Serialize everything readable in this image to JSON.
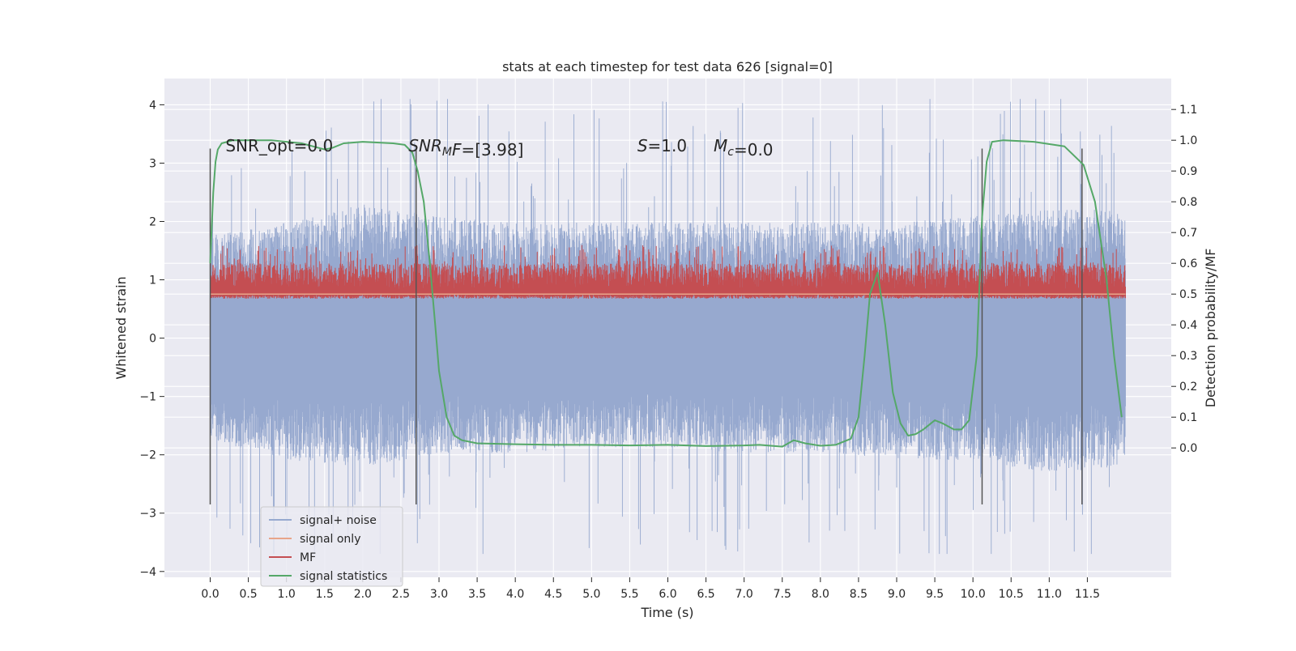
{
  "chart_data": {
    "type": "line",
    "title": "stats at each timestep for test data 626 [signal=0]",
    "xlabel": "Time (s)",
    "ylabel": "Whitened strain",
    "y2label": "Detection probability/MF",
    "xlim": [
      -0.6,
      12.6
    ],
    "ylim": [
      -4.1,
      4.45
    ],
    "y2lim": [
      -0.4205,
      1.2005
    ],
    "xticks": [
      0.0,
      0.5,
      1.0,
      1.5,
      2.0,
      2.5,
      3.0,
      3.5,
      4.0,
      4.5,
      5.0,
      5.5,
      6.0,
      6.5,
      7.0,
      7.5,
      8.0,
      8.5,
      9.0,
      9.5,
      10.0,
      10.5,
      11.0,
      11.5
    ],
    "xtick_labels": [
      "0.0",
      "0.5",
      "1.0",
      "1.5",
      "2.0",
      "2.5",
      "3.0",
      "3.5",
      "4.0",
      "4.5",
      "5.0",
      "5.5",
      "6.0",
      "6.5",
      "7.0",
      "7.5",
      "8.0",
      "8.5",
      "9.0",
      "9.5",
      "10.0",
      "10.5",
      "11.0",
      "11.5"
    ],
    "yticks": [
      -4,
      -3,
      -2,
      -1,
      0,
      1,
      2,
      3,
      4
    ],
    "ytick_labels": [
      "−4",
      "−3",
      "−2",
      "−1",
      "0",
      "1",
      "2",
      "3",
      "4"
    ],
    "y2ticks": [
      0.0,
      0.1,
      0.2,
      0.3,
      0.4,
      0.5,
      0.6,
      0.7,
      0.8,
      0.9,
      1.0,
      1.1
    ],
    "y2tick_labels": [
      "0.0",
      "0.1",
      "0.2",
      "0.3",
      "0.4",
      "0.5",
      "0.6",
      "0.7",
      "0.8",
      "0.9",
      "1.0",
      "1.1"
    ],
    "grid": true,
    "legend_position": "lower-left",
    "colors": {
      "background": "#eaeaf2",
      "grid": "#ffffff",
      "noise": "#97a9cf",
      "signal_only": "#e8a58a",
      "mf": "#c44e52",
      "stat": "#55a868",
      "vline": "#555555"
    },
    "series": [
      {
        "name": "signal+ noise",
        "color": "#97a9cf",
        "t_range": [
          0.0,
          12.0
        ],
        "envelope_upper_approx": [
          [
            0.0,
            1.6
          ],
          [
            1.0,
            1.8
          ],
          [
            2.0,
            2.1
          ],
          [
            3.0,
            1.9
          ],
          [
            4.0,
            1.8
          ],
          [
            5.0,
            1.8
          ],
          [
            6.0,
            1.8
          ],
          [
            7.0,
            1.8
          ],
          [
            8.0,
            1.8
          ],
          [
            9.0,
            1.8
          ],
          [
            10.0,
            1.9
          ],
          [
            11.0,
            2.0
          ],
          [
            12.0,
            2.0
          ]
        ],
        "envelope_lower_approx": [
          [
            0.0,
            -1.6
          ],
          [
            1.0,
            -1.9
          ],
          [
            2.0,
            -2.0
          ],
          [
            3.0,
            -1.8
          ],
          [
            4.0,
            -1.8
          ],
          [
            5.0,
            -1.7
          ],
          [
            6.0,
            -1.7
          ],
          [
            7.0,
            -1.8
          ],
          [
            8.0,
            -1.8
          ],
          [
            9.0,
            -1.9
          ],
          [
            10.0,
            -1.9
          ],
          [
            11.0,
            -2.1
          ],
          [
            12.0,
            -2.0
          ]
        ],
        "peak_max": 4.1,
        "peak_min": -3.7
      },
      {
        "name": "signal only",
        "color": "#e8a58a",
        "t_range": [
          0.0,
          12.0
        ],
        "y_right": 0.5
      },
      {
        "name": "MF",
        "color": "#c44e52",
        "t_range": [
          0.0,
          12.0
        ],
        "y_right_min": 0.5,
        "y_right_typical_max": 0.6,
        "y_right_peak_max": 0.66
      },
      {
        "name": "signal statistics",
        "color": "#55a868",
        "x": [
          0.0,
          0.04,
          0.07,
          0.1,
          0.15,
          0.3,
          0.5,
          0.8,
          1.2,
          1.35,
          1.5,
          1.6,
          1.75,
          2.0,
          2.4,
          2.55,
          2.65,
          2.72,
          2.8,
          2.88,
          2.95,
          3.0,
          3.1,
          3.2,
          3.3,
          3.5,
          4.0,
          4.5,
          5.0,
          5.5,
          6.0,
          6.5,
          7.0,
          7.2,
          7.5,
          7.65,
          7.8,
          8.0,
          8.2,
          8.4,
          8.5,
          8.58,
          8.65,
          8.75,
          8.85,
          8.95,
          9.05,
          9.15,
          9.25,
          9.35,
          9.5,
          9.6,
          9.75,
          9.85,
          9.95,
          10.05,
          10.12,
          10.18,
          10.25,
          10.4,
          10.8,
          11.2,
          11.45,
          11.6,
          11.75,
          11.85,
          11.95
        ],
        "y_right": [
          0.6,
          0.83,
          0.93,
          0.97,
          0.99,
          1.0,
          1.0,
          1.0,
          0.99,
          0.98,
          0.97,
          0.975,
          0.99,
          0.995,
          0.99,
          0.985,
          0.96,
          0.9,
          0.8,
          0.6,
          0.4,
          0.25,
          0.1,
          0.04,
          0.025,
          0.015,
          0.012,
          0.01,
          0.01,
          0.008,
          0.01,
          0.006,
          0.008,
          0.01,
          0.004,
          0.025,
          0.015,
          0.007,
          0.01,
          0.03,
          0.1,
          0.3,
          0.5,
          0.57,
          0.4,
          0.18,
          0.08,
          0.04,
          0.045,
          0.06,
          0.09,
          0.08,
          0.06,
          0.06,
          0.09,
          0.3,
          0.75,
          0.93,
          0.995,
          1.0,
          0.995,
          0.98,
          0.92,
          0.8,
          0.55,
          0.3,
          0.1
        ]
      }
    ],
    "vertical_lines": [
      0.0,
      2.7,
      10.12,
      11.43
    ],
    "vertical_lines_yrange": [
      -2.85,
      3.25
    ],
    "annotations": [
      {
        "x": 0.2,
        "y": 3.2,
        "parts": [
          {
            "t": "SNR_opt=0.0",
            "i": false
          }
        ]
      },
      {
        "x": 2.6,
        "y": 3.2,
        "parts": [
          {
            "t": "SNR",
            "i": true
          },
          {
            "t": "M",
            "i": true,
            "sub": true
          },
          {
            "t": "F",
            "i": true
          },
          {
            "t": "=[3.98]",
            "i": false
          }
        ]
      },
      {
        "x": 5.6,
        "y": 3.2,
        "parts": [
          {
            "t": "S",
            "i": true
          },
          {
            "t": "=1.0",
            "i": false
          }
        ]
      },
      {
        "x": 6.6,
        "y": 3.2,
        "parts": [
          {
            "t": "M",
            "i": true
          },
          {
            "t": "c",
            "i": true,
            "sub": true
          },
          {
            "t": "=0.0",
            "i": false
          }
        ]
      }
    ],
    "legend": [
      {
        "label": "signal+ noise",
        "color": "#97a9cf"
      },
      {
        "label": "signal only",
        "color": "#e8a58a"
      },
      {
        "label": "MF",
        "color": "#c44e52"
      },
      {
        "label": "signal statistics",
        "color": "#55a868"
      }
    ]
  }
}
